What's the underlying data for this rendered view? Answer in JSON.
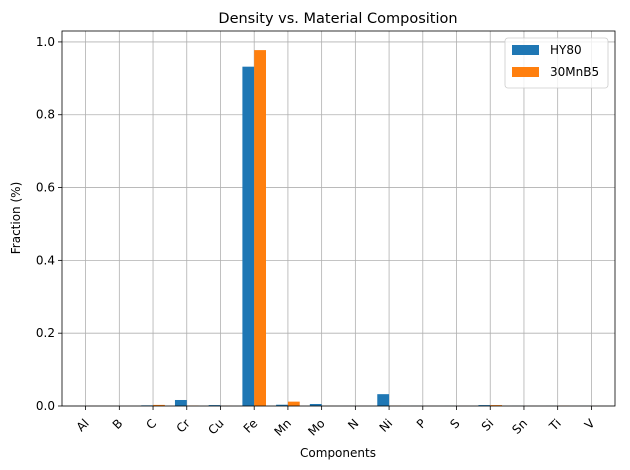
{
  "chart_data": {
    "type": "bar",
    "title": "Density vs. Material Composition",
    "xlabel": "Components",
    "ylabel": "Fraction (%)",
    "categories": [
      "Al",
      "B",
      "C",
      "Cr",
      "Cu",
      "Fe",
      "Mn",
      "Mo",
      "N",
      "Ni",
      "P",
      "S",
      "Si",
      "Sn",
      "Ti",
      "V"
    ],
    "series": [
      {
        "name": "HY80",
        "color": "#1f77b4",
        "values": [
          0.0001,
          0.0,
          0.0018,
          0.0165,
          0.0025,
          0.932,
          0.0035,
          0.0055,
          0.0001,
          0.0325,
          0.0002,
          0.0002,
          0.0025,
          0.0003,
          0.0002,
          0.0003
        ]
      },
      {
        "name": "30MnB5",
        "color": "#ff7f0e",
        "values": [
          0.0001,
          3e-05,
          0.003,
          0.001,
          0.0004,
          0.9775,
          0.012,
          0.0002,
          0.0001,
          0.0005,
          0.0001,
          0.0001,
          0.0025,
          0.0001,
          0.0005,
          0.0001
        ]
      }
    ],
    "ylim": [
      0,
      1.03
    ],
    "yticks": [
      0.0,
      0.2,
      0.4,
      0.6,
      0.8,
      1.0
    ],
    "ytick_labels": [
      "0.0",
      "0.2",
      "0.4",
      "0.6",
      "0.8",
      "1.0"
    ],
    "grid": true,
    "legend_position": "top-right"
  }
}
